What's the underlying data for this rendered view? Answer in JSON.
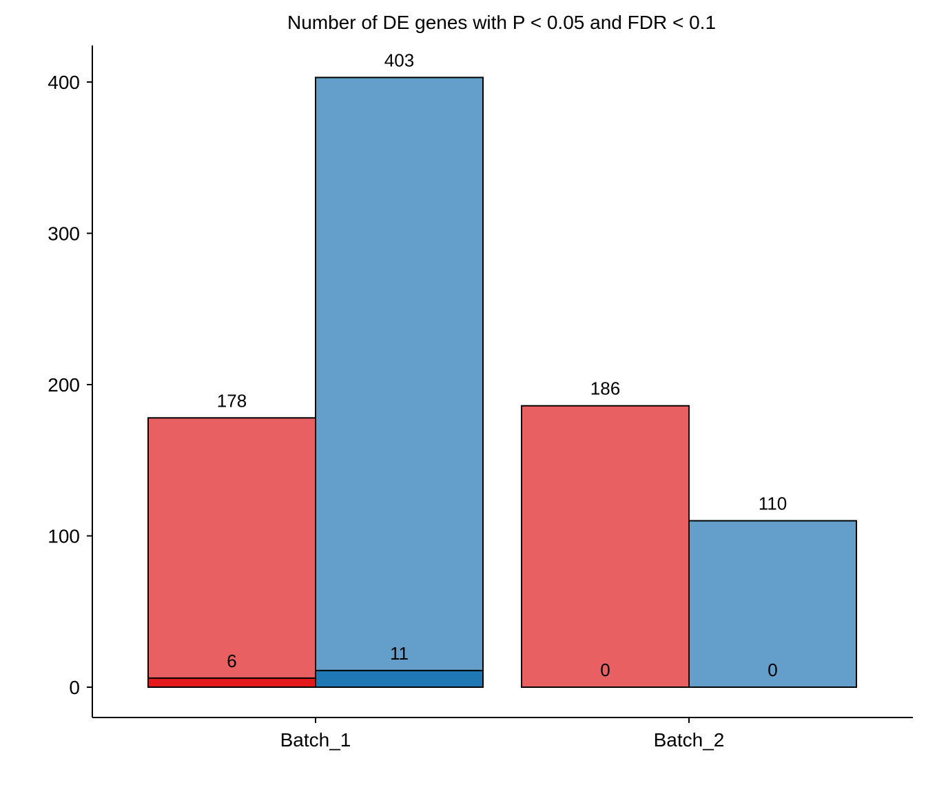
{
  "chart_data": {
    "type": "bar",
    "title": "Number of DE genes with P < 0.05 and FDR < 0.1",
    "xlabel": "",
    "ylabel": "",
    "categories": [
      "Batch_1",
      "Batch_2"
    ],
    "ylim": [
      -20,
      425
    ],
    "yticks": [
      0,
      100,
      200,
      300,
      400
    ],
    "grid": false,
    "legend": "none",
    "series": [
      {
        "color": "#E96063",
        "values": [
          178,
          186
        ]
      },
      {
        "color": "#639FCA",
        "values": [
          403,
          110
        ]
      }
    ],
    "overlay_series": [
      {
        "color": "#E31A1C",
        "values": [
          6,
          0
        ]
      },
      {
        "color": "#1F78B4",
        "values": [
          11,
          0
        ]
      }
    ],
    "labels": {
      "series": [
        [
          "178",
          "186"
        ],
        [
          "403",
          "110"
        ]
      ],
      "overlay": [
        [
          "6",
          "0"
        ],
        [
          "11",
          "0"
        ]
      ]
    }
  }
}
